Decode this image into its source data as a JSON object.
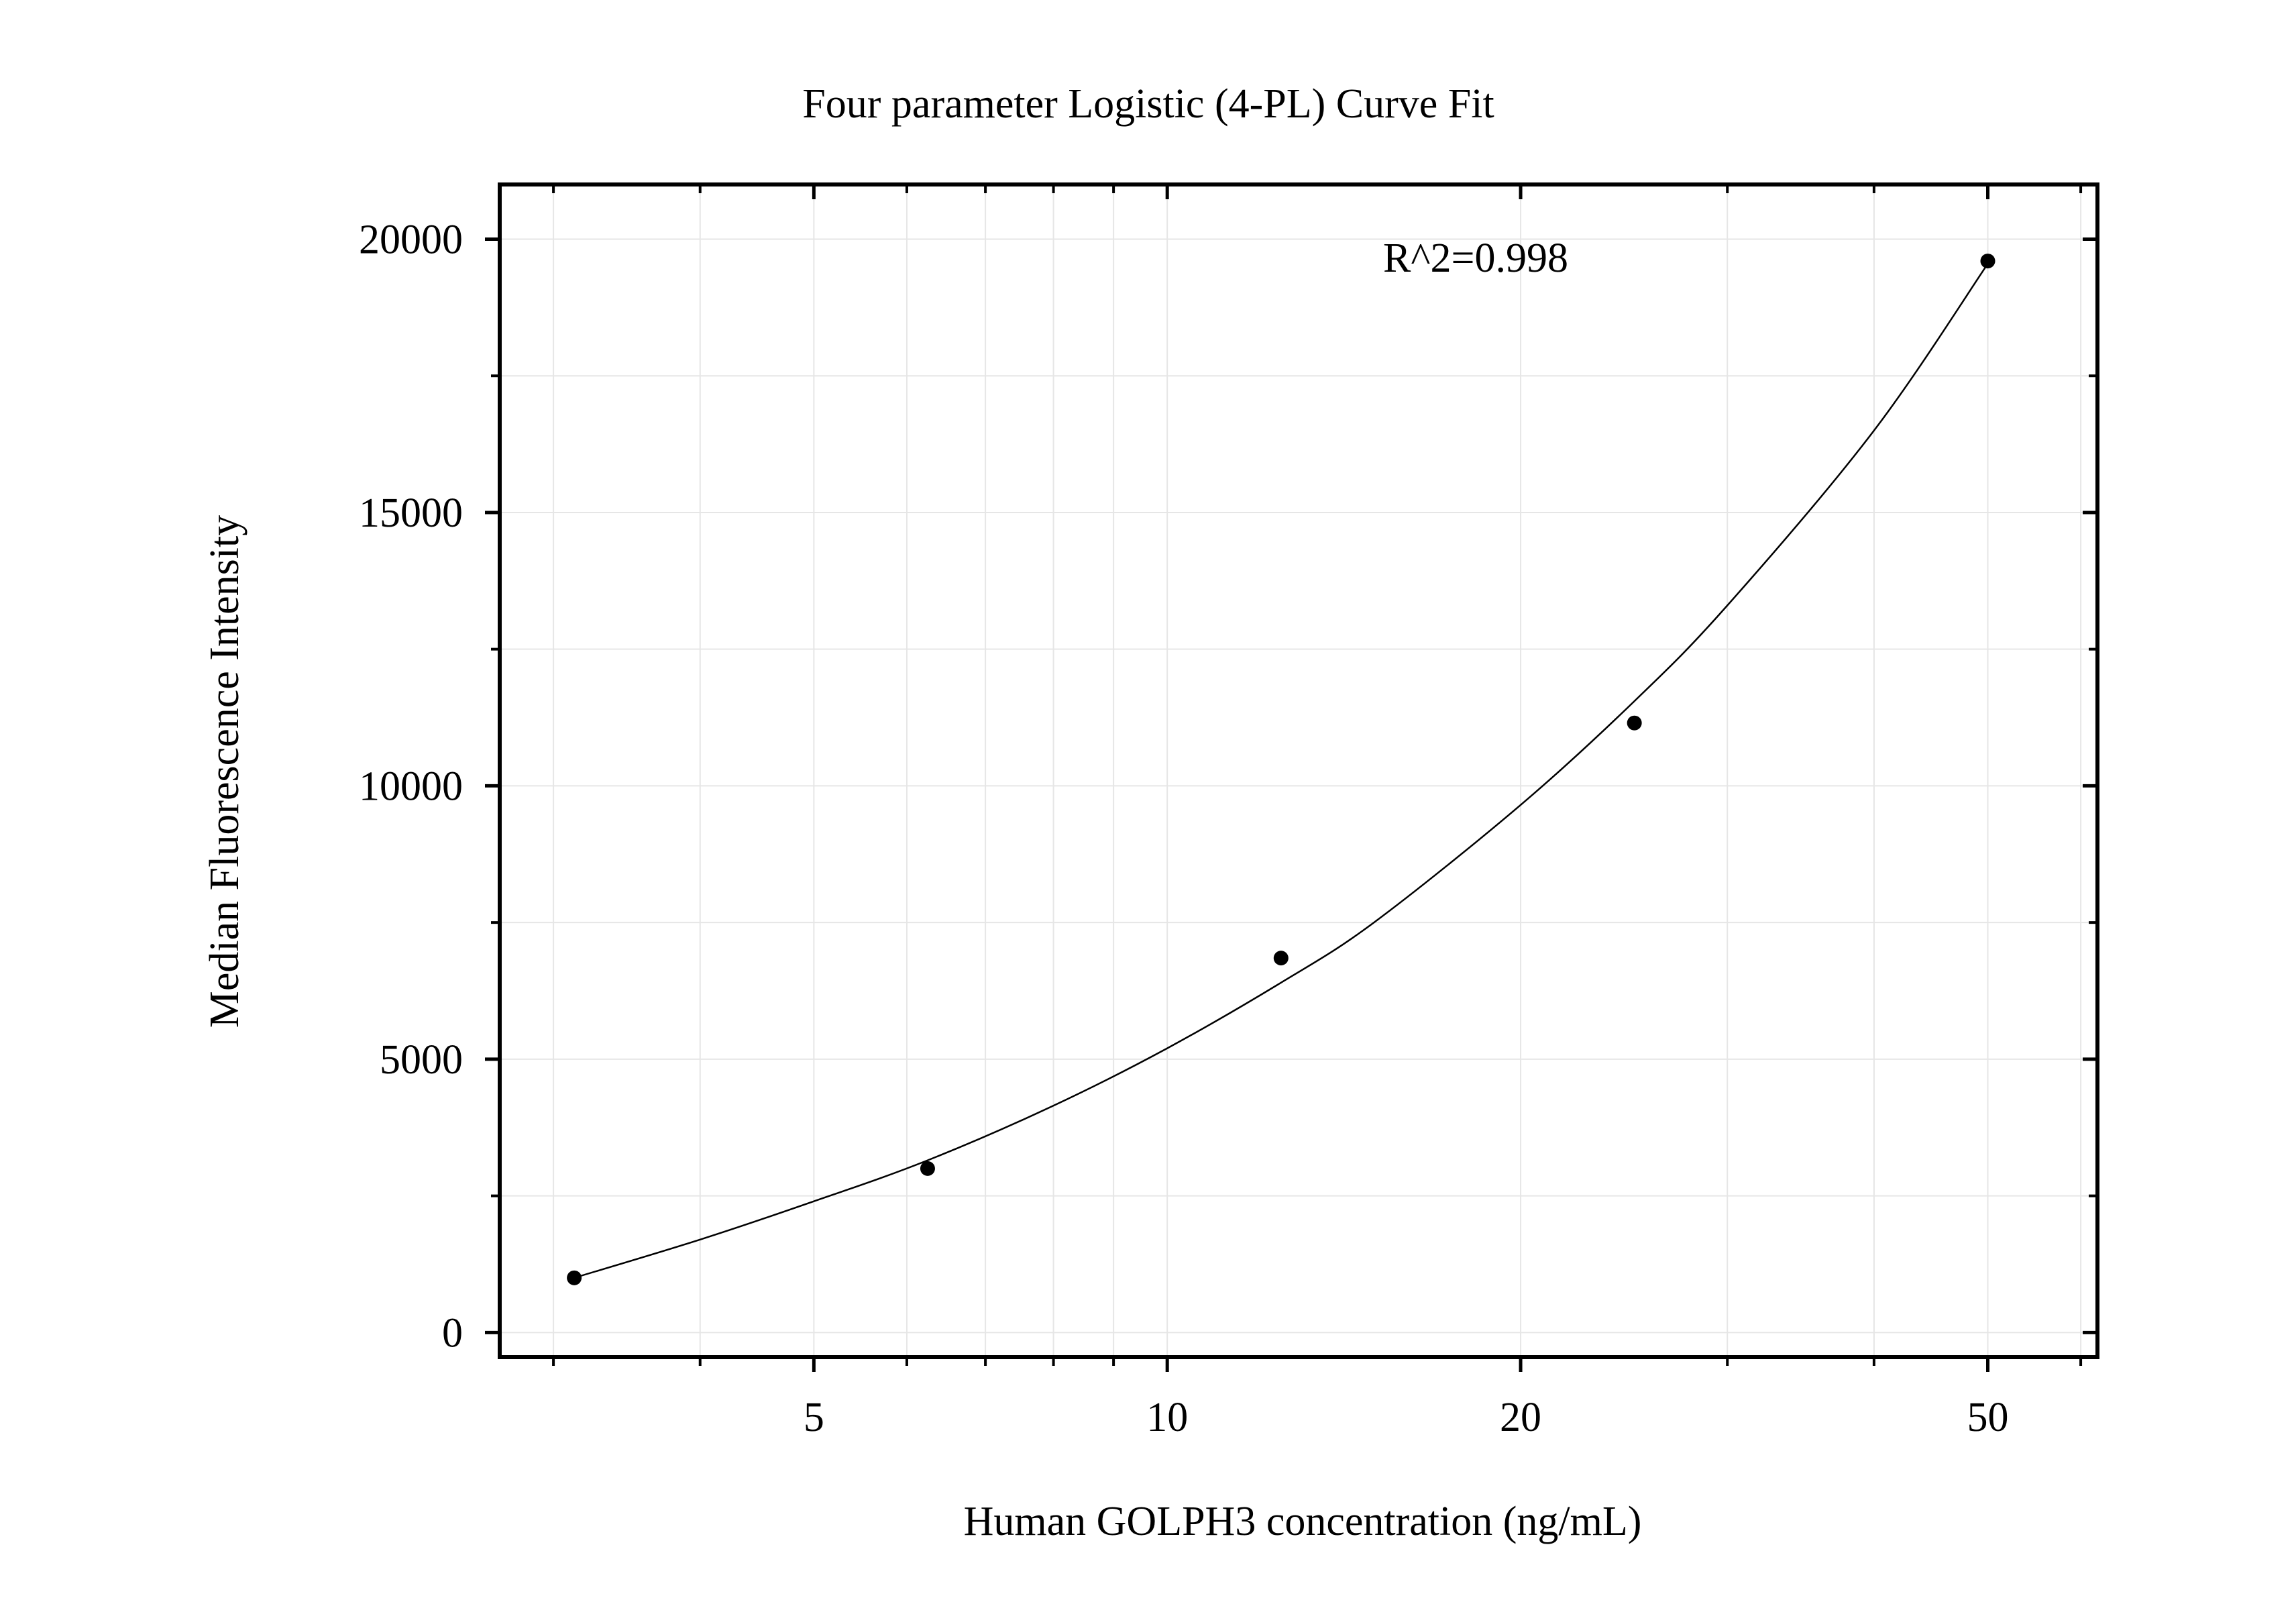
{
  "chart_data": {
    "type": "scatter",
    "title": "Four parameter Logistic (4-PL) Curve Fit",
    "xlabel": "Human GOLPH3 concentration (ng/mL)",
    "ylabel": "Median Fluorescence Intensity",
    "annotation": "R^2=0.998",
    "x_scale": "log",
    "xlim": [
      2.7,
      62
    ],
    "ylim": [
      -450,
      21000
    ],
    "x_ticks": [
      {
        "value": 5,
        "label": "5"
      },
      {
        "value": 10,
        "label": "10"
      },
      {
        "value": 20,
        "label": "20"
      },
      {
        "value": 50,
        "label": "50"
      }
    ],
    "x_minor_ticks": [
      3,
      4,
      6,
      7,
      8,
      9,
      30,
      40,
      60
    ],
    "y_ticks": [
      {
        "value": 0,
        "label": "0"
      },
      {
        "value": 5000,
        "label": "5000"
      },
      {
        "value": 10000,
        "label": "10000"
      },
      {
        "value": 15000,
        "label": "15000"
      },
      {
        "value": 20000,
        "label": "20000"
      }
    ],
    "y_minor_ticks": [
      2500,
      7500,
      12500,
      17500
    ],
    "grid": true,
    "points": {
      "x": [
        3.125,
        6.25,
        12.5,
        25,
        50
      ],
      "y": [
        1000,
        3000,
        6850,
        11150,
        19600
      ]
    },
    "fit_curve": {
      "x": [
        3.125,
        4,
        5,
        6.25,
        8,
        10,
        12.5,
        15,
        20,
        25,
        30,
        40,
        50
      ],
      "y": [
        1000,
        1700,
        2400,
        3150,
        4150,
        5200,
        6400,
        7500,
        9650,
        11550,
        13300,
        16500,
        19550
      ]
    },
    "colors": {
      "points": "#000000",
      "curve": "#000000",
      "grid": "#e6e6e6",
      "axis": "#000000",
      "background": "#ffffff"
    }
  }
}
